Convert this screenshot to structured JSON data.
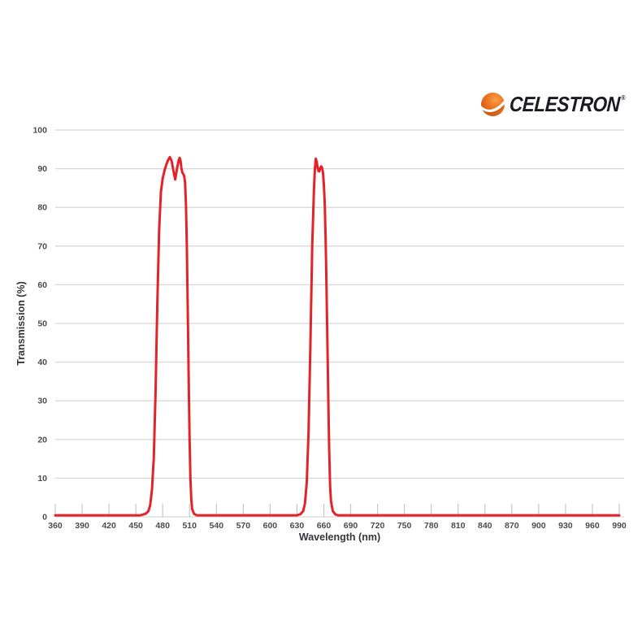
{
  "logo": {
    "brand": "CELESTRON",
    "registered": "®",
    "orb_color": "#ee7420",
    "orb_color_dark": "#c85311",
    "orb_color_light": "#f9a04a",
    "brand_color": "#1a1a22"
  },
  "chart_data": {
    "type": "line",
    "title": "",
    "xlabel": "Wavelength (nm)",
    "ylabel": "Transmission (%)",
    "xlim": [
      360,
      990
    ],
    "ylim": [
      0,
      100
    ],
    "x_tick_step": 30,
    "y_tick_step": 10,
    "x_ticks": [
      360,
      390,
      420,
      450,
      480,
      510,
      540,
      570,
      600,
      630,
      660,
      690,
      720,
      750,
      780,
      810,
      840,
      870,
      900,
      930,
      960,
      990
    ],
    "y_ticks": [
      0,
      10,
      20,
      30,
      40,
      50,
      60,
      70,
      80,
      90,
      100
    ],
    "grid": "horizontal-only",
    "legend": "none",
    "line_color": "#e2232a",
    "grid_color": "#d8d8d8",
    "tick_color": "#c6c6c6",
    "tick_label_color": "#4b4b52",
    "axis_title_color": "#35353b",
    "series": [
      {
        "name": "transmission",
        "points": [
          [
            360,
            0.4
          ],
          [
            455,
            0.4
          ],
          [
            461,
            0.8
          ],
          [
            464,
            1.5
          ],
          [
            466,
            3
          ],
          [
            468,
            7
          ],
          [
            470,
            15
          ],
          [
            472,
            32
          ],
          [
            474,
            55
          ],
          [
            476,
            74
          ],
          [
            478,
            84
          ],
          [
            480,
            87.5
          ],
          [
            482,
            89.5
          ],
          [
            484,
            91
          ],
          [
            486,
            92.2
          ],
          [
            488,
            93
          ],
          [
            490,
            92
          ],
          [
            492,
            89.5
          ],
          [
            494,
            87.2
          ],
          [
            496,
            90
          ],
          [
            498,
            92.3
          ],
          [
            499,
            92.8
          ],
          [
            500,
            92
          ],
          [
            501,
            90
          ],
          [
            502,
            89
          ],
          [
            503,
            88.6
          ],
          [
            504,
            88.2
          ],
          [
            505,
            86.5
          ],
          [
            506,
            81
          ],
          [
            507,
            70
          ],
          [
            508,
            54
          ],
          [
            509,
            37
          ],
          [
            510,
            21
          ],
          [
            511,
            10
          ],
          [
            512,
            4.5
          ],
          [
            513,
            2
          ],
          [
            515,
            0.8
          ],
          [
            518,
            0.4
          ],
          [
            630,
            0.4
          ],
          [
            634,
            0.7
          ],
          [
            637,
            1.5
          ],
          [
            639,
            3.5
          ],
          [
            641,
            9
          ],
          [
            643,
            22
          ],
          [
            645,
            45
          ],
          [
            647,
            70
          ],
          [
            649,
            85
          ],
          [
            650,
            90
          ],
          [
            651,
            92.6
          ],
          [
            652,
            91.8
          ],
          [
            653,
            90.3
          ],
          [
            654,
            89.4
          ],
          [
            655,
            89.3
          ],
          [
            656,
            90.2
          ],
          [
            657,
            90.6
          ],
          [
            658,
            90.3
          ],
          [
            659,
            89
          ],
          [
            660,
            86
          ],
          [
            661,
            81
          ],
          [
            662,
            72
          ],
          [
            663,
            59
          ],
          [
            664,
            45
          ],
          [
            665,
            30
          ],
          [
            666,
            17
          ],
          [
            667,
            8
          ],
          [
            668,
            4
          ],
          [
            670,
            1.5
          ],
          [
            673,
            0.6
          ],
          [
            676,
            0.4
          ],
          [
            990,
            0.4
          ]
        ]
      }
    ]
  }
}
